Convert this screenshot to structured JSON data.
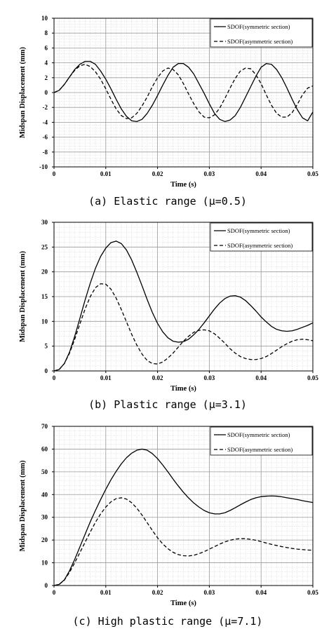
{
  "chart_data": [
    {
      "type": "line",
      "caption": "(a) Elastic range (μ=0.5)",
      "xlabel": "Time (s)",
      "ylabel": "Midspan Displacement (mm)",
      "xlim": [
        0,
        0.05
      ],
      "ylim": [
        -10,
        10
      ],
      "xticks": [
        "0",
        "0.01",
        "0.02",
        "0.03",
        "0.04",
        "0.05"
      ],
      "yticks": [
        "-10",
        "-8",
        "-6",
        "-4",
        "-2",
        "0",
        "2",
        "4",
        "6",
        "8",
        "10"
      ],
      "grid": true,
      "legend_position": "top-right",
      "series": [
        {
          "name": "SDOF(symmetric section)",
          "style": "solid",
          "x": [
            0,
            0.001,
            0.002,
            0.003,
            0.004,
            0.005,
            0.006,
            0.007,
            0.008,
            0.009,
            0.01,
            0.011,
            0.012,
            0.013,
            0.014,
            0.015,
            0.016,
            0.017,
            0.018,
            0.019,
            0.02,
            0.021,
            0.022,
            0.023,
            0.024,
            0.025,
            0.026,
            0.027,
            0.028,
            0.029,
            0.03,
            0.031,
            0.032,
            0.033,
            0.034,
            0.035,
            0.036,
            0.037,
            0.038,
            0.039,
            0.04,
            0.041,
            0.042,
            0.043,
            0.044,
            0.045,
            0.046,
            0.047,
            0.048,
            0.049,
            0.05
          ],
          "y": [
            0.0,
            0.3,
            1.1,
            2.1,
            3.1,
            3.8,
            4.2,
            4.2,
            3.8,
            2.9,
            1.8,
            0.5,
            -0.9,
            -2.2,
            -3.2,
            -3.8,
            -3.9,
            -3.6,
            -2.8,
            -1.7,
            -0.4,
            1.0,
            2.3,
            3.4,
            3.9,
            3.9,
            3.4,
            2.5,
            1.2,
            -0.1,
            -1.5,
            -2.8,
            -3.6,
            -3.9,
            -3.7,
            -3.1,
            -2.0,
            -0.6,
            0.8,
            2.2,
            3.4,
            3.9,
            3.8,
            3.1,
            2.0,
            0.6,
            -0.9,
            -2.3,
            -3.4,
            -3.8,
            -2.6
          ]
        },
        {
          "name": "SDOF(asymmetric section)",
          "style": "dashed",
          "x": [
            0,
            0.001,
            0.002,
            0.003,
            0.004,
            0.005,
            0.006,
            0.007,
            0.008,
            0.009,
            0.01,
            0.011,
            0.012,
            0.013,
            0.014,
            0.015,
            0.016,
            0.017,
            0.018,
            0.019,
            0.02,
            0.021,
            0.022,
            0.023,
            0.024,
            0.025,
            0.026,
            0.027,
            0.028,
            0.029,
            0.03,
            0.031,
            0.032,
            0.033,
            0.034,
            0.035,
            0.036,
            0.037,
            0.038,
            0.039,
            0.04,
            0.041,
            0.042,
            0.043,
            0.044,
            0.045,
            0.046,
            0.047,
            0.048,
            0.049,
            0.05
          ],
          "y": [
            0.0,
            0.3,
            1.1,
            2.1,
            3.0,
            3.6,
            3.8,
            3.5,
            2.8,
            1.8,
            0.5,
            -0.9,
            -2.2,
            -3.1,
            -3.5,
            -3.4,
            -2.8,
            -1.8,
            -0.6,
            0.8,
            2.0,
            2.9,
            3.3,
            3.1,
            2.4,
            1.2,
            -0.2,
            -1.5,
            -2.6,
            -3.3,
            -3.4,
            -3.0,
            -2.1,
            -0.8,
            0.6,
            1.9,
            2.9,
            3.3,
            3.2,
            2.4,
            1.2,
            -0.3,
            -1.7,
            -2.8,
            -3.3,
            -3.3,
            -2.7,
            -1.6,
            -0.3,
            0.6,
            0.9
          ]
        }
      ]
    },
    {
      "type": "line",
      "caption": "(b) Plastic range (μ=3.1)",
      "xlabel": "Time (s)",
      "ylabel": "Midspan Displacement (mm)",
      "xlim": [
        0,
        0.05
      ],
      "ylim": [
        0,
        30
      ],
      "xticks": [
        "0",
        "0.01",
        "0.02",
        "0.03",
        "0.04",
        "0.05"
      ],
      "yticks": [
        "0",
        "5",
        "10",
        "15",
        "20",
        "25",
        "30"
      ],
      "grid": true,
      "legend_position": "top-right",
      "series": [
        {
          "name": "SDOF(symmetric section)",
          "style": "solid",
          "x": [
            0,
            0.001,
            0.002,
            0.003,
            0.004,
            0.005,
            0.006,
            0.007,
            0.008,
            0.009,
            0.01,
            0.011,
            0.012,
            0.013,
            0.014,
            0.015,
            0.016,
            0.017,
            0.018,
            0.019,
            0.02,
            0.021,
            0.022,
            0.023,
            0.024,
            0.025,
            0.026,
            0.027,
            0.028,
            0.029,
            0.03,
            0.031,
            0.032,
            0.033,
            0.034,
            0.035,
            0.036,
            0.037,
            0.038,
            0.039,
            0.04,
            0.041,
            0.042,
            0.043,
            0.044,
            0.045,
            0.046,
            0.047,
            0.048,
            0.049,
            0.05
          ],
          "y": [
            0.0,
            0.3,
            1.5,
            3.8,
            7.0,
            10.6,
            14.3,
            17.7,
            20.7,
            23.1,
            24.8,
            25.9,
            26.2,
            25.7,
            24.4,
            22.4,
            19.9,
            17.2,
            14.4,
            11.8,
            9.6,
            7.9,
            6.7,
            6.0,
            5.8,
            5.9,
            6.4,
            7.3,
            8.4,
            9.7,
            11.1,
            12.5,
            13.7,
            14.6,
            15.1,
            15.2,
            14.9,
            14.2,
            13.2,
            12.1,
            10.9,
            9.9,
            9.0,
            8.4,
            8.1,
            8.0,
            8.1,
            8.4,
            8.8,
            9.2,
            9.7
          ]
        },
        {
          "name": "SDOF(asymmetric section)",
          "style": "dashed",
          "x": [
            0,
            0.001,
            0.002,
            0.003,
            0.004,
            0.005,
            0.006,
            0.007,
            0.008,
            0.009,
            0.01,
            0.011,
            0.012,
            0.013,
            0.014,
            0.015,
            0.016,
            0.017,
            0.018,
            0.019,
            0.02,
            0.021,
            0.022,
            0.023,
            0.024,
            0.025,
            0.026,
            0.027,
            0.028,
            0.029,
            0.03,
            0.031,
            0.032,
            0.033,
            0.034,
            0.035,
            0.036,
            0.037,
            0.038,
            0.039,
            0.04,
            0.041,
            0.042,
            0.043,
            0.044,
            0.045,
            0.046,
            0.047,
            0.048,
            0.049,
            0.05
          ],
          "y": [
            0.0,
            0.3,
            1.5,
            3.6,
            6.4,
            9.5,
            12.5,
            15.0,
            16.8,
            17.6,
            17.5,
            16.5,
            14.7,
            12.4,
            9.9,
            7.4,
            5.2,
            3.4,
            2.1,
            1.5,
            1.4,
            1.8,
            2.6,
            3.6,
            4.8,
            6.0,
            7.0,
            7.8,
            8.2,
            8.3,
            8.1,
            7.5,
            6.6,
            5.6,
            4.5,
            3.6,
            2.9,
            2.5,
            2.3,
            2.3,
            2.5,
            2.9,
            3.5,
            4.2,
            4.9,
            5.5,
            6.0,
            6.3,
            6.4,
            6.3,
            6.1
          ]
        }
      ]
    },
    {
      "type": "line",
      "caption": "(c) High plastic range (μ=7.1)",
      "xlabel": "Time (s)",
      "ylabel": "Midspan Displacement (mm)",
      "xlim": [
        0,
        0.05
      ],
      "ylim": [
        0,
        70
      ],
      "xticks": [
        "0",
        "0.01",
        "0.02",
        "0.03",
        "0.04",
        "0.05"
      ],
      "yticks": [
        "0",
        "10",
        "20",
        "30",
        "40",
        "50",
        "60",
        "70"
      ],
      "grid": true,
      "legend_position": "top-right",
      "series": [
        {
          "name": "SDOF(symmetric section)",
          "style": "solid",
          "x": [
            0,
            0.001,
            0.002,
            0.003,
            0.004,
            0.005,
            0.006,
            0.007,
            0.008,
            0.009,
            0.01,
            0.011,
            0.012,
            0.013,
            0.014,
            0.015,
            0.016,
            0.017,
            0.018,
            0.019,
            0.02,
            0.021,
            0.022,
            0.023,
            0.024,
            0.025,
            0.026,
            0.027,
            0.028,
            0.029,
            0.03,
            0.031,
            0.032,
            0.033,
            0.034,
            0.035,
            0.036,
            0.037,
            0.038,
            0.039,
            0.04,
            0.041,
            0.042,
            0.043,
            0.044,
            0.045,
            0.046,
            0.047,
            0.048,
            0.049,
            0.05
          ],
          "y": [
            0.0,
            0.5,
            2.5,
            6.5,
            11.5,
            17.0,
            22.5,
            28.0,
            33.0,
            37.8,
            42.3,
            46.5,
            50.2,
            53.5,
            56.2,
            58.2,
            59.5,
            60.0,
            59.5,
            58.0,
            55.8,
            53.0,
            50.0,
            46.8,
            43.8,
            41.0,
            38.5,
            36.3,
            34.5,
            33.0,
            32.0,
            31.5,
            31.5,
            32.0,
            33.0,
            34.2,
            35.5,
            36.7,
            37.8,
            38.6,
            39.1,
            39.3,
            39.4,
            39.3,
            39.0,
            38.6,
            38.2,
            37.8,
            37.3,
            36.9,
            36.5
          ]
        },
        {
          "name": "SDOF(asymmetric section)",
          "style": "dashed",
          "x": [
            0,
            0.001,
            0.002,
            0.003,
            0.004,
            0.005,
            0.006,
            0.007,
            0.008,
            0.009,
            0.01,
            0.011,
            0.012,
            0.013,
            0.014,
            0.015,
            0.016,
            0.017,
            0.018,
            0.019,
            0.02,
            0.021,
            0.022,
            0.023,
            0.024,
            0.025,
            0.026,
            0.027,
            0.028,
            0.029,
            0.03,
            0.031,
            0.032,
            0.033,
            0.034,
            0.035,
            0.036,
            0.037,
            0.038,
            0.039,
            0.04,
            0.041,
            0.042,
            0.043,
            0.044,
            0.045,
            0.046,
            0.047,
            0.048,
            0.049,
            0.05
          ],
          "y": [
            0.0,
            0.5,
            2.4,
            5.8,
            10.0,
            14.5,
            19.0,
            23.5,
            27.8,
            31.5,
            34.5,
            36.8,
            38.2,
            38.6,
            38.0,
            36.4,
            34.0,
            31.0,
            27.6,
            24.2,
            21.0,
            18.3,
            16.2,
            14.6,
            13.6,
            13.1,
            13.0,
            13.3,
            14.0,
            14.9,
            16.0,
            17.1,
            18.2,
            19.2,
            19.9,
            20.4,
            20.6,
            20.6,
            20.3,
            19.9,
            19.3,
            18.7,
            18.1,
            17.6,
            17.1,
            16.7,
            16.3,
            16.0,
            15.8,
            15.6,
            15.5
          ]
        }
      ]
    }
  ]
}
